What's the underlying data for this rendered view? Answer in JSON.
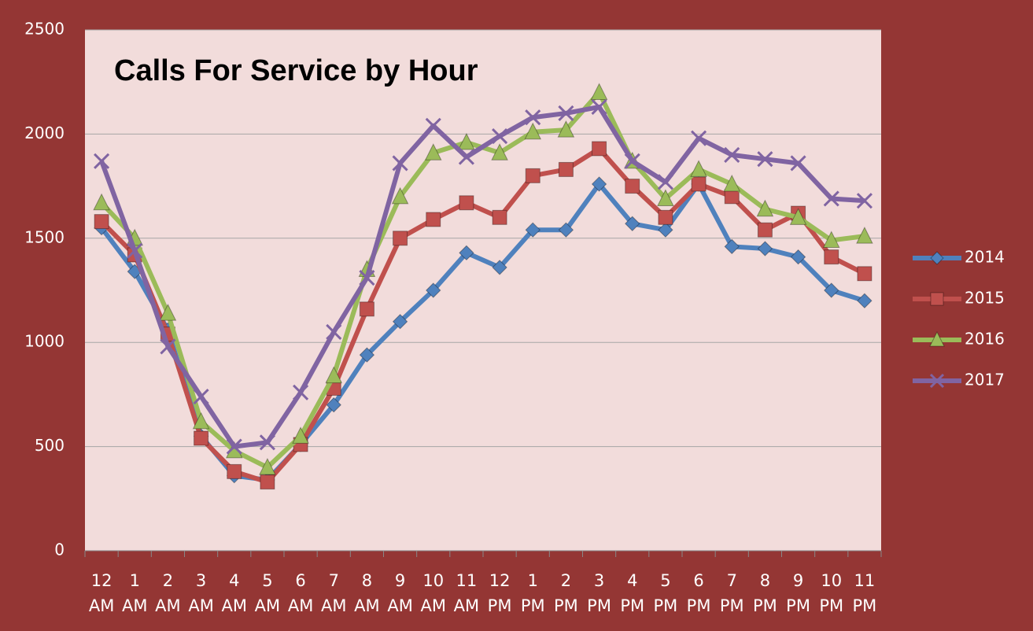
{
  "chart_data": {
    "type": "line",
    "title": "Calls For Service by Hour",
    "categories": [
      "12 AM",
      "1 AM",
      "2 AM",
      "3 AM",
      "4 AM",
      "5 AM",
      "6 AM",
      "7 AM",
      "8 AM",
      "9 AM",
      "10 AM",
      "11 AM",
      "12 PM",
      "1 PM",
      "2 PM",
      "3 PM",
      "4 PM",
      "5 PM",
      "6 PM",
      "7 PM",
      "8 PM",
      "9 PM",
      "10 PM",
      "11 PM"
    ],
    "series": [
      {
        "name": "2014",
        "color": "#4f81bd",
        "marker": "diamond",
        "values": [
          1550,
          1340,
          1060,
          550,
          360,
          340,
          510,
          700,
          940,
          1100,
          1250,
          1430,
          1360,
          1540,
          1540,
          1760,
          1570,
          1540,
          1760,
          1460,
          1450,
          1410,
          1250,
          1200
        ]
      },
      {
        "name": "2015",
        "color": "#c0504d",
        "marker": "square",
        "values": [
          1580,
          1420,
          1040,
          540,
          380,
          330,
          510,
          780,
          1160,
          1500,
          1590,
          1670,
          1600,
          1800,
          1830,
          1930,
          1750,
          1600,
          1760,
          1700,
          1540,
          1620,
          1410,
          1330
        ]
      },
      {
        "name": "2016",
        "color": "#9bbb59",
        "marker": "triangle",
        "values": [
          1670,
          1500,
          1140,
          620,
          480,
          400,
          550,
          840,
          1350,
          1700,
          1910,
          1960,
          1910,
          2010,
          2020,
          2200,
          1870,
          1690,
          1830,
          1760,
          1640,
          1600,
          1490,
          1510
        ]
      },
      {
        "name": "2017",
        "color": "#8064a2",
        "marker": "x",
        "values": [
          1870,
          1440,
          980,
          740,
          500,
          520,
          760,
          1050,
          1310,
          1860,
          2040,
          1890,
          1990,
          2080,
          2100,
          2130,
          1870,
          1770,
          1980,
          1900,
          1880,
          1860,
          1690,
          1680
        ]
      }
    ],
    "ylim": [
      0,
      2500
    ],
    "yticks": [
      0,
      500,
      1000,
      1500,
      2000,
      2500
    ],
    "grid": true,
    "legend": "right"
  }
}
